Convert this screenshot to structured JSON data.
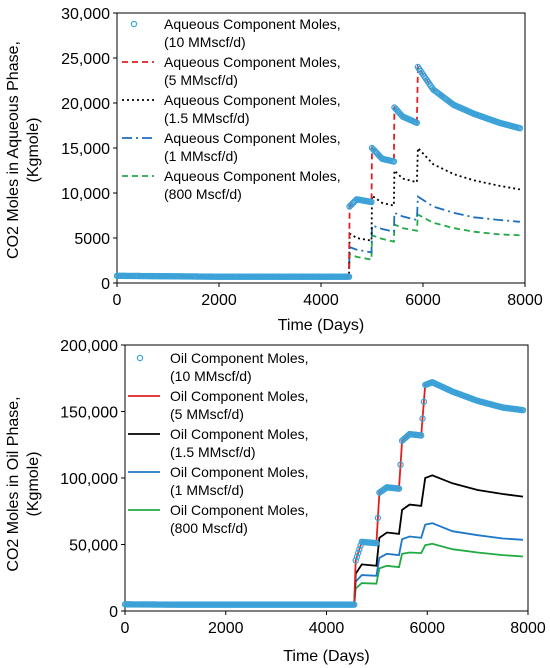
{
  "chart_data": [
    {
      "type": "scatter",
      "xlabel": "Time (Days)",
      "ylabel_lines": [
        "CO2 Moles in Aqueous Phase,",
        "(Kgmole)"
      ],
      "xlim": [
        0,
        8000
      ],
      "ylim": [
        0,
        30000
      ],
      "xticks": [
        0,
        2000,
        4000,
        6000,
        8000
      ],
      "xtick_labels": [
        "0",
        "2000",
        "4000",
        "6000",
        "8000"
      ],
      "yticks": [
        0,
        5000,
        10000,
        15000,
        20000,
        25000,
        30000
      ],
      "ytick_labels": [
        "0",
        "5000",
        "10,000",
        "15,000",
        "20,000",
        "25,000",
        "30,000"
      ],
      "legend_position": "top-left",
      "series": [
        {
          "name_lines": [
            "Aqueous Component Moles,",
            "(10 MMscf/d)"
          ],
          "color": "#3ba3d9",
          "style": "markers",
          "x": [
            0,
            1000,
            2000,
            3000,
            4000,
            4550,
            4560,
            4700,
            4990,
            5000,
            5200,
            5430,
            5440,
            5600,
            5880,
            5900,
            6200,
            6600,
            7000,
            7500,
            7900
          ],
          "y": [
            800,
            750,
            700,
            700,
            700,
            700,
            8500,
            9300,
            9000,
            15000,
            13800,
            13500,
            19500,
            18500,
            17800,
            24000,
            21500,
            19800,
            18800,
            17800,
            17200
          ]
        },
        {
          "name_lines": [
            "Aqueous Component Moles,",
            "(5 MMscf/d)"
          ],
          "color": "#e02020",
          "style": "dashed",
          "x": [
            0,
            1000,
            2000,
            3000,
            4000,
            4550,
            4560,
            4700,
            4990,
            5000,
            5200,
            5430,
            5440,
            5600,
            5880,
            5900,
            6200,
            6600,
            7000,
            7500,
            7900
          ],
          "y": [
            800,
            750,
            700,
            700,
            700,
            700,
            8500,
            9300,
            9000,
            15000,
            13800,
            13500,
            19500,
            18500,
            17800,
            24000,
            21500,
            19800,
            18800,
            17800,
            17200
          ]
        },
        {
          "name_lines": [
            "Aqueous Component Moles,",
            "(1.5 MMscf/d)"
          ],
          "color": "#000000",
          "style": "dotted",
          "x": [
            0,
            1000,
            2000,
            3000,
            4000,
            4550,
            4560,
            4700,
            4990,
            5000,
            5200,
            5430,
            5440,
            5600,
            5880,
            5900,
            6200,
            6600,
            7000,
            7500,
            7900
          ],
          "y": [
            800,
            750,
            700,
            700,
            700,
            700,
            5500,
            5000,
            4700,
            9700,
            8900,
            8600,
            12500,
            11600,
            11200,
            15000,
            13200,
            12100,
            11400,
            10800,
            10400
          ]
        },
        {
          "name_lines": [
            "Aqueous Component Moles,",
            "(1 MMscf/d)"
          ],
          "color": "#1f6fc0",
          "style": "dashdot",
          "x": [
            0,
            1000,
            2000,
            3000,
            4000,
            4550,
            4560,
            4700,
            4990,
            5000,
            5200,
            5430,
            5440,
            5600,
            5880,
            5900,
            6200,
            6600,
            7000,
            7500,
            7900
          ],
          "y": [
            800,
            750,
            700,
            700,
            700,
            700,
            4000,
            3700,
            3400,
            6400,
            6000,
            5700,
            7800,
            7400,
            7000,
            9600,
            8500,
            7800,
            7300,
            7000,
            6800
          ]
        },
        {
          "name_lines": [
            "Aqueous Component Moles,",
            "(800 Mscf/d)"
          ],
          "color": "#22aa44",
          "style": "dashed",
          "x": [
            0,
            1000,
            2000,
            3000,
            4000,
            4550,
            4560,
            4700,
            4990,
            5000,
            5200,
            5430,
            5440,
            5600,
            5880,
            5900,
            6200,
            6600,
            7000,
            7500,
            7900
          ],
          "y": [
            800,
            750,
            700,
            700,
            700,
            700,
            3200,
            2900,
            2600,
            5300,
            4900,
            4600,
            6500,
            6100,
            5800,
            7600,
            6700,
            6100,
            5700,
            5400,
            5300
          ]
        }
      ]
    },
    {
      "type": "scatter",
      "xlabel": "Time (Days)",
      "ylabel_lines": [
        "CO2 Moles in Oil Phase,",
        "(Kgmole)"
      ],
      "xlim": [
        0,
        8000
      ],
      "ylim": [
        0,
        200000
      ],
      "xticks": [
        0,
        2000,
        4000,
        6000,
        8000
      ],
      "xtick_labels": [
        "0",
        "2000",
        "4000",
        "6000",
        "8000"
      ],
      "yticks": [
        0,
        50000,
        100000,
        150000,
        200000
      ],
      "ytick_labels": [
        "0",
        "50,000",
        "100,000",
        "150,000",
        "200,000"
      ],
      "legend_position": "top-left",
      "series": [
        {
          "name_lines": [
            "Oil Component Moles,",
            "(10 MMscf/d)"
          ],
          "color": "#3ba3d9",
          "style": "markers",
          "x": [
            0,
            1000,
            2000,
            3000,
            4000,
            4550,
            4580,
            4700,
            4990,
            5050,
            5200,
            5440,
            5500,
            5650,
            5880,
            5960,
            6100,
            6500,
            7000,
            7500,
            7900
          ],
          "y": [
            5000,
            4800,
            4800,
            4800,
            4800,
            4800,
            38000,
            52000,
            51000,
            89000,
            93000,
            92000,
            128000,
            133000,
            132000,
            170000,
            172000,
            165000,
            158000,
            153000,
            151000
          ]
        },
        {
          "name_lines": [
            "Oil Component Moles,",
            "(5 MMscf/d)"
          ],
          "color": "#e02020",
          "style": "solid",
          "x": [
            0,
            1000,
            2000,
            3000,
            4000,
            4550,
            4580,
            4700,
            4990,
            5050,
            5200,
            5440,
            5500,
            5650,
            5880,
            5960,
            6100,
            6500,
            7000,
            7500,
            7900
          ],
          "y": [
            5000,
            4800,
            4800,
            4800,
            4800,
            4800,
            38000,
            52000,
            51000,
            89000,
            93000,
            92000,
            128000,
            133000,
            132000,
            170000,
            172000,
            165000,
            158000,
            153000,
            151000
          ]
        },
        {
          "name_lines": [
            "Oil Component Moles,",
            "(1.5 MMscf/d)"
          ],
          "color": "#000000",
          "style": "solid",
          "x": [
            0,
            1000,
            2000,
            3000,
            4000,
            4550,
            4580,
            4700,
            4990,
            5050,
            5200,
            5440,
            5500,
            5650,
            5880,
            5960,
            6100,
            6500,
            7000,
            7500,
            7900
          ],
          "y": [
            5000,
            4800,
            4800,
            4800,
            4800,
            4800,
            28000,
            35000,
            34000,
            55000,
            59000,
            58000,
            76000,
            80000,
            79000,
            100000,
            102000,
            96000,
            91000,
            88000,
            86000
          ]
        },
        {
          "name_lines": [
            "Oil Component Moles,",
            "(1 MMscf/d)"
          ],
          "color": "#1f78c8",
          "style": "solid",
          "x": [
            0,
            1000,
            2000,
            3000,
            4000,
            4550,
            4580,
            4700,
            4990,
            5050,
            5200,
            5440,
            5500,
            5650,
            5880,
            5960,
            6100,
            6500,
            7000,
            7500,
            7900
          ],
          "y": [
            5000,
            4800,
            4800,
            4800,
            4800,
            4800,
            22000,
            27000,
            26500,
            40000,
            43000,
            42000,
            54000,
            56000,
            55000,
            65000,
            66000,
            60000,
            57000,
            54500,
            53500
          ]
        },
        {
          "name_lines": [
            "Oil Component Moles,",
            "(800 Mscf/d)"
          ],
          "color": "#22aa44",
          "style": "solid",
          "x": [
            0,
            1000,
            2000,
            3000,
            4000,
            4550,
            4580,
            4700,
            4990,
            5050,
            5200,
            5440,
            5500,
            5650,
            5880,
            5960,
            6100,
            6500,
            7000,
            7500,
            7900
          ],
          "y": [
            5000,
            4800,
            4800,
            4800,
            4800,
            4800,
            17000,
            21000,
            20500,
            32000,
            34000,
            33000,
            43000,
            44000,
            43500,
            49500,
            50500,
            46500,
            44000,
            42000,
            41000
          ]
        }
      ]
    }
  ]
}
